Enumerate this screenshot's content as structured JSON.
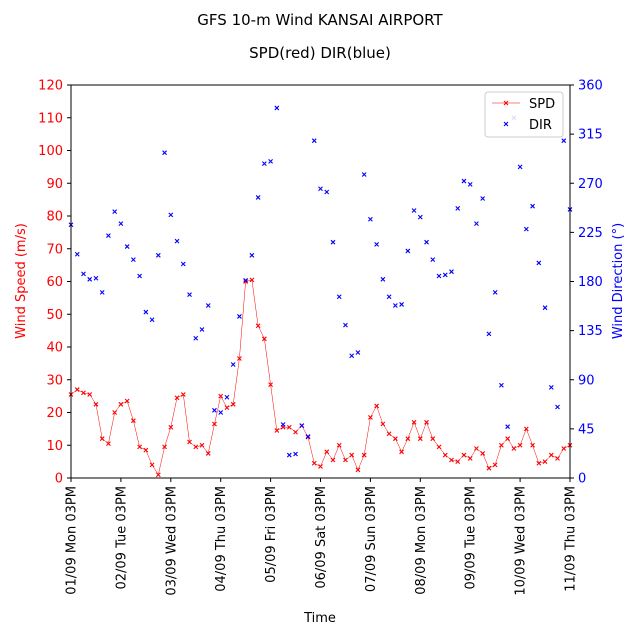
{
  "chart_data": {
    "type": "line",
    "title": "GFS 10-m Wind KANSAI AIRPORT",
    "subtitle": "SPD(red) DIR(blue)",
    "xlabel": "Time",
    "ylabel_left": "Wind Speed (m/s)",
    "ylabel_right": "Wind Direction (°)",
    "x_unit": "hours from 01/09 Mon 03PM",
    "xlim": [
      0,
      240
    ],
    "ylim_left": [
      0,
      120
    ],
    "ylim_right": [
      0,
      360
    ],
    "xticks": [
      0,
      24,
      48,
      72,
      96,
      120,
      144,
      168,
      192,
      216,
      240
    ],
    "xtick_labels": [
      "01/09 Mon 03PM",
      "02/09 Tue 03PM",
      "03/09 Wed 03PM",
      "04/09 Thu 03PM",
      "05/09 Fri 03PM",
      "06/09 Sat 03PM",
      "07/09 Sun 03PM",
      "08/09 Mon 03PM",
      "09/09 Tue 03PM",
      "10/09 Wed 03PM",
      "11/09 Thu 03PM"
    ],
    "yticks_left": [
      0,
      10,
      20,
      30,
      40,
      50,
      60,
      70,
      80,
      90,
      100,
      110,
      120
    ],
    "yticks_right": [
      0,
      45,
      90,
      135,
      180,
      225,
      270,
      315,
      360
    ],
    "grid": false,
    "legend_position": "top-right",
    "colors": {
      "spd": "#ff0000",
      "dir": "#0000ff"
    },
    "series": [
      {
        "name": "SPD",
        "axis": "left",
        "marker": "x",
        "x": [
          0,
          3,
          6,
          9,
          12,
          15,
          18,
          21,
          24,
          27,
          30,
          33,
          36,
          39,
          42,
          45,
          48,
          51,
          54,
          57,
          60,
          63,
          66,
          69,
          72,
          75,
          78,
          81,
          84,
          87,
          90,
          93,
          96,
          99,
          102,
          105,
          108,
          111,
          114,
          117,
          120,
          123,
          126,
          129,
          132,
          135,
          138,
          141,
          144,
          147,
          150,
          153,
          156,
          159,
          162,
          165,
          168,
          171,
          174,
          177,
          180,
          183,
          186,
          189,
          192,
          195,
          198,
          201,
          204,
          207,
          210,
          213,
          216,
          219,
          222,
          225,
          228,
          231,
          234,
          237,
          240
        ],
        "values": [
          25.5,
          27,
          26,
          25.5,
          22.5,
          12,
          10.5,
          20,
          22.5,
          23.5,
          17.5,
          9.5,
          8.5,
          4,
          1,
          9.5,
          15.5,
          24.5,
          25.5,
          11,
          9.5,
          10,
          7.5,
          16.5,
          25,
          21.5,
          22.5,
          36.5,
          60,
          60.5,
          46.5,
          42.5,
          28.5,
          14.5,
          15.5,
          15.5,
          14,
          16,
          12.5,
          4.5,
          3.5,
          8,
          5.5,
          10,
          5.5,
          7,
          2.5,
          7,
          18.5,
          22,
          16.5,
          13.5,
          12,
          8,
          12,
          17,
          12,
          17,
          12,
          9.5,
          7,
          5.5,
          5,
          7,
          6,
          9,
          7.5,
          3,
          4,
          10,
          12,
          9,
          10,
          15,
          10,
          4.5,
          5,
          7,
          6,
          9,
          10
        ]
      },
      {
        "name": "DIR",
        "axis": "right",
        "marker": "x",
        "x": [
          0,
          3,
          6,
          9,
          12,
          15,
          18,
          21,
          24,
          27,
          30,
          33,
          36,
          39,
          42,
          45,
          48,
          51,
          54,
          57,
          60,
          63,
          66,
          69,
          72,
          75,
          78,
          81,
          84,
          87,
          90,
          93,
          96,
          99,
          102,
          105,
          108,
          111,
          114,
          117,
          120,
          123,
          126,
          129,
          132,
          135,
          138,
          141,
          144,
          147,
          150,
          153,
          156,
          159,
          162,
          165,
          168,
          171,
          174,
          177,
          180,
          183,
          186,
          189,
          192,
          195,
          198,
          201,
          204,
          207,
          210,
          213,
          216,
          219,
          222,
          225,
          228,
          231,
          234,
          237,
          240
        ],
        "values": [
          232,
          205,
          187,
          182,
          183,
          170,
          222,
          244,
          233,
          212,
          200,
          185,
          152,
          145,
          204,
          298,
          241,
          217,
          196,
          168,
          128,
          136,
          158,
          62,
          60,
          74,
          104,
          148,
          181,
          204,
          257,
          288,
          290,
          339,
          49,
          21,
          22,
          48,
          38,
          309,
          265,
          262,
          216,
          166,
          140,
          112,
          115,
          278,
          237,
          214,
          182,
          166,
          158,
          159,
          208,
          245,
          239,
          216,
          200,
          185,
          186,
          189,
          247,
          272,
          269,
          233,
          256,
          132,
          170,
          85,
          47,
          330,
          285,
          228,
          249,
          197,
          156,
          83,
          65,
          309,
          246
        ]
      }
    ]
  }
}
